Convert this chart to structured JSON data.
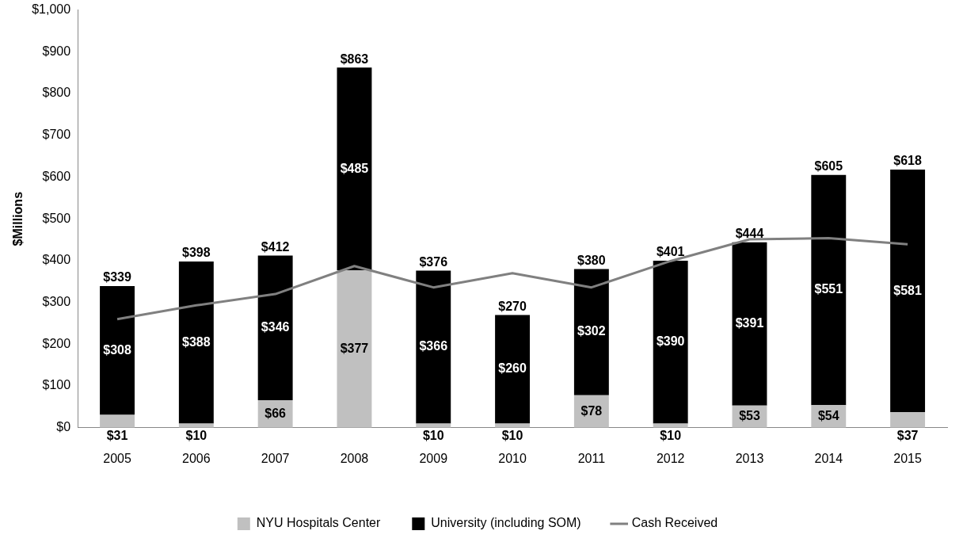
{
  "chart_data": {
    "type": "bar",
    "stacked": true,
    "ylabel": "$Millions",
    "categories": [
      "2005",
      "2006",
      "2007",
      "2008",
      "2009",
      "2010",
      "2011",
      "2012",
      "2013",
      "2014",
      "2015"
    ],
    "series": [
      {
        "name": "NYU Hospitals Center",
        "color": "#c0c0c0",
        "values": [
          31,
          10,
          66,
          377,
          10,
          10,
          78,
          10,
          53,
          54,
          37
        ],
        "value_labels": [
          "$31",
          "$10",
          "$66",
          "$377",
          "$10",
          "$10",
          "$78",
          "$10",
          "$53",
          "$54",
          "$37"
        ]
      },
      {
        "name": "University (including SOM)",
        "color": "#000000",
        "values": [
          308,
          388,
          346,
          485,
          366,
          260,
          302,
          390,
          391,
          551,
          581
        ],
        "value_labels": [
          "$308",
          "$388",
          "$346",
          "$485",
          "$366",
          "$260",
          "$302",
          "$390",
          "$391",
          "$551",
          "$581"
        ]
      },
      {
        "name": "Cash Received",
        "type": "line",
        "color": "#808080",
        "marker": "none",
        "values": [
          260,
          293,
          320,
          387,
          336,
          370,
          336,
          399,
          451,
          454,
          439
        ]
      }
    ],
    "totals": [
      "$339",
      "$398",
      "$412",
      "$863",
      "$376",
      "$270",
      "$380",
      "$401",
      "$444",
      "$605",
      "$618"
    ],
    "ylim": [
      0,
      1000
    ],
    "yticks": [
      {
        "value": 0,
        "label": "$0"
      },
      {
        "value": 100,
        "label": "$100"
      },
      {
        "value": 200,
        "label": "$200"
      },
      {
        "value": 300,
        "label": "$300"
      },
      {
        "value": 400,
        "label": "$400"
      },
      {
        "value": 500,
        "label": "$500"
      },
      {
        "value": 600,
        "label": "$600"
      },
      {
        "value": 700,
        "label": "$700"
      },
      {
        "value": 800,
        "label": "$800"
      },
      {
        "value": 900,
        "label": "$900"
      },
      {
        "value": 1000,
        "label": "$1,000"
      }
    ],
    "grid": false,
    "legend": "bottom"
  }
}
